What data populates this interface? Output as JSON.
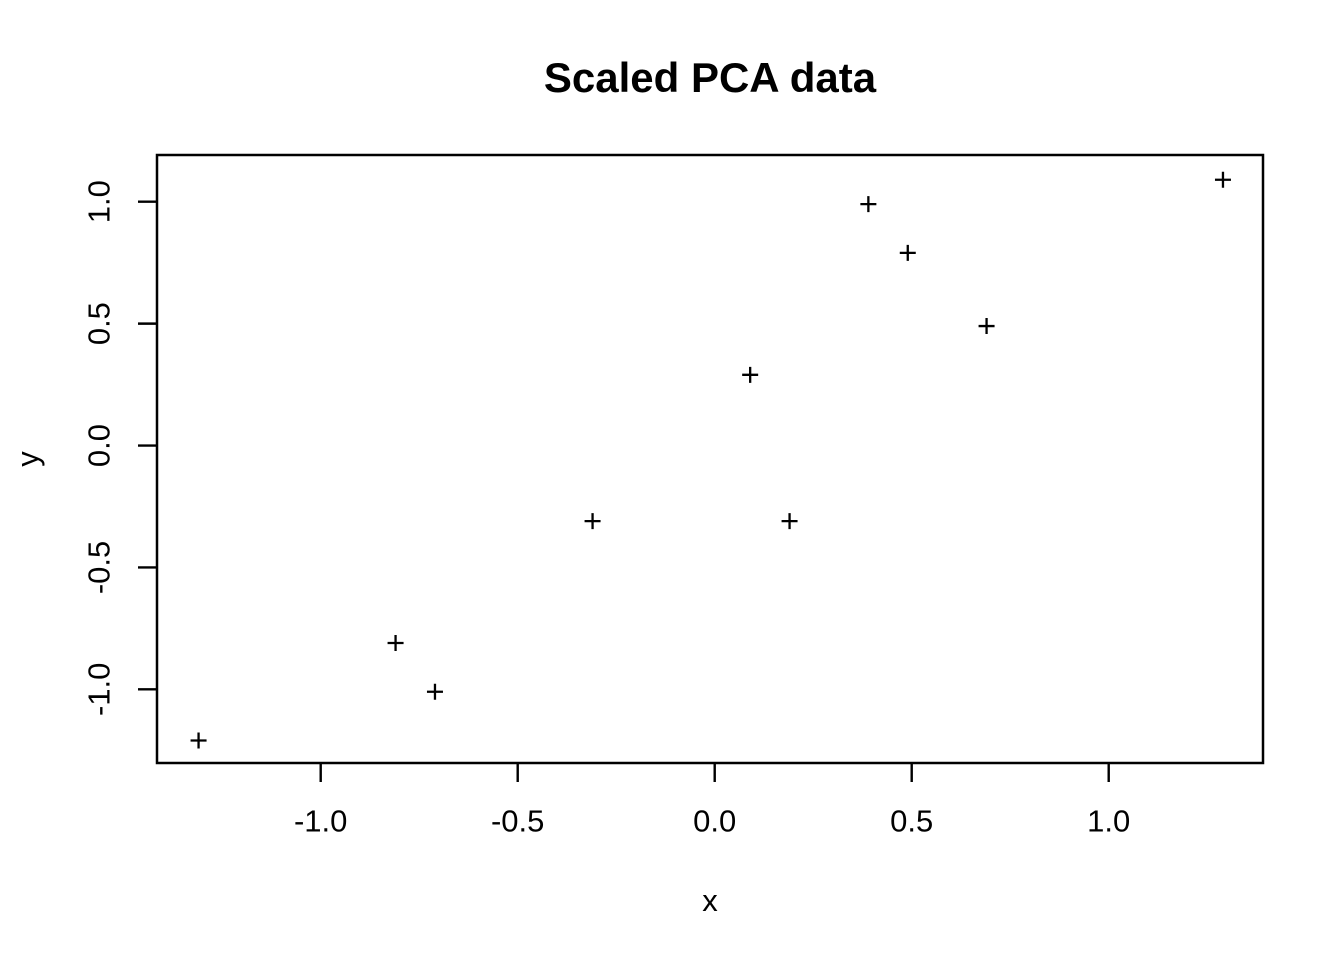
{
  "chart_data": {
    "type": "scatter",
    "title": "Scaled PCA data",
    "xlabel": "x",
    "ylabel": "y",
    "marker": "plus",
    "marker_color": "#000000",
    "axis_color": "#000000",
    "background_color": "#ffffff",
    "grid": false,
    "legend": null,
    "xlim": [
      -1.4155,
      1.3916
    ],
    "ylim": [
      -1.3022,
      1.1916
    ],
    "xticks": {
      "values": [
        -1.0,
        -0.5,
        0.0,
        0.5,
        1.0
      ],
      "labels": [
        "-1.0",
        "-0.5",
        "0.0",
        "0.5",
        "1.0"
      ]
    },
    "yticks": {
      "values": [
        -1.0,
        -0.5,
        0.0,
        0.5,
        1.0
      ],
      "labels": [
        "-1.0",
        "-0.5",
        "0.0",
        "0.5",
        "1.0"
      ]
    },
    "points": [
      {
        "x": 0.69,
        "y": 0.49
      },
      {
        "x": -1.31,
        "y": -1.21
      },
      {
        "x": 0.39,
        "y": 0.99
      },
      {
        "x": 0.09,
        "y": 0.29
      },
      {
        "x": 1.29,
        "y": 1.09
      },
      {
        "x": 0.49,
        "y": 0.79
      },
      {
        "x": 0.19,
        "y": -0.31
      },
      {
        "x": -0.81,
        "y": -0.81
      },
      {
        "x": -0.31,
        "y": -0.31
      },
      {
        "x": -0.71,
        "y": -1.01
      }
    ]
  }
}
